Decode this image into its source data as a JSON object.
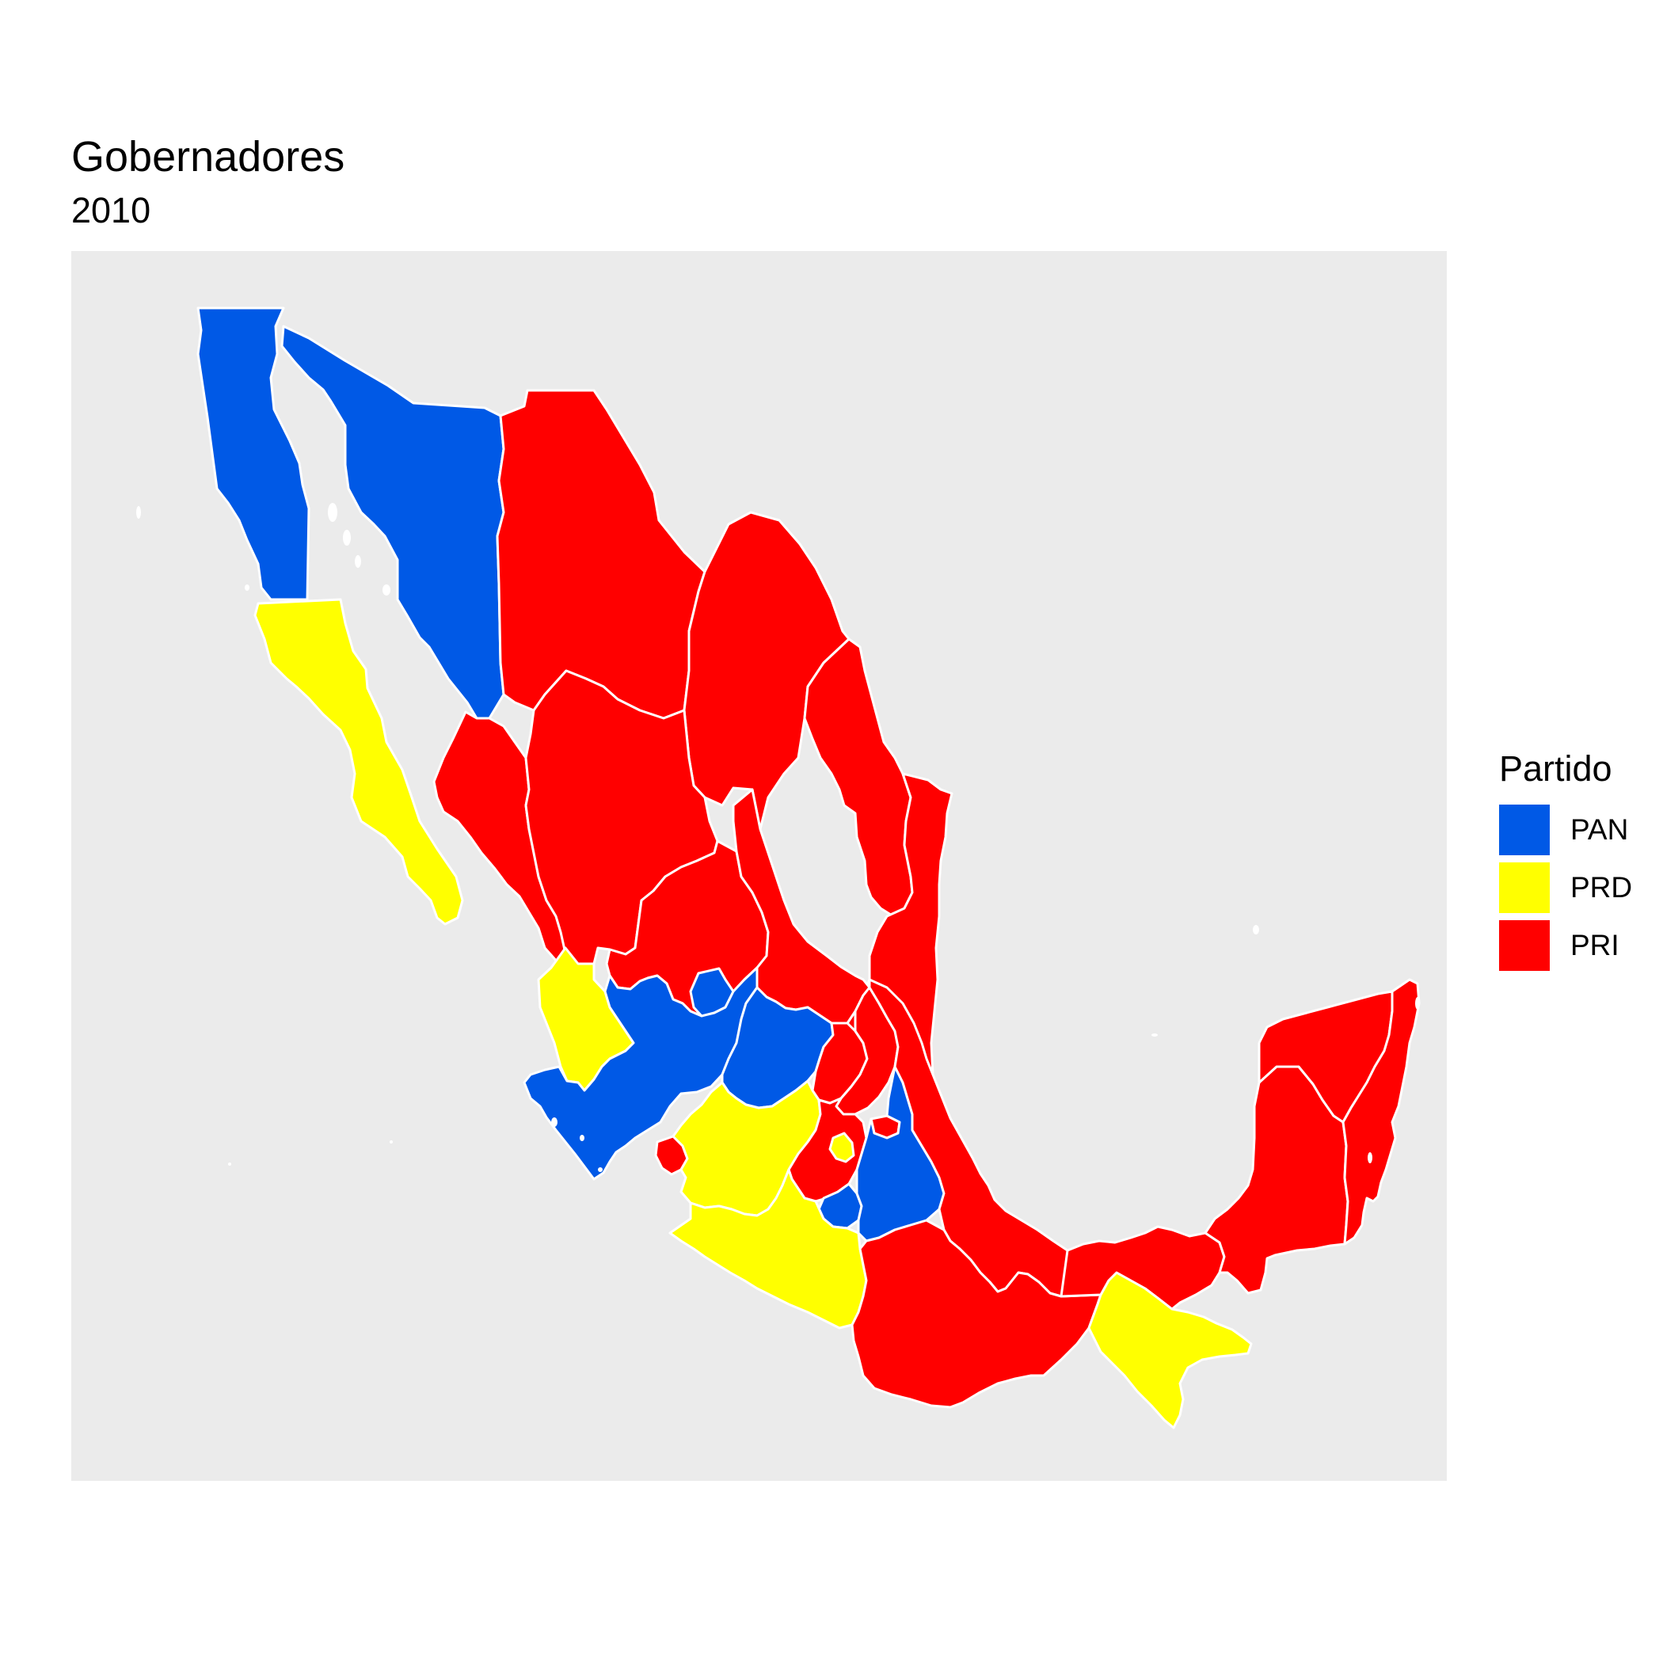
{
  "map": {
    "title": "Gobernadores",
    "subtitle": "2010",
    "legend": {
      "title": "Partido",
      "items": [
        {
          "label": "PAN",
          "color": "#0059e6"
        },
        {
          "label": "PRD",
          "color": "#ffff00"
        },
        {
          "label": "PRI",
          "color": "#ff0000"
        }
      ]
    },
    "colors": {
      "PAN": "#0059e6",
      "PRD": "#ffff00",
      "PRI": "#ff0000",
      "border": "#ffffff",
      "panel_background": "#ebebeb"
    },
    "states": [
      {
        "name": "Baja California",
        "party": "PAN"
      },
      {
        "name": "Baja California Sur",
        "party": "PRD"
      },
      {
        "name": "Sonora",
        "party": "PAN"
      },
      {
        "name": "Chihuahua",
        "party": "PRI"
      },
      {
        "name": "Coahuila",
        "party": "PRI"
      },
      {
        "name": "Nuevo León",
        "party": "PRI"
      },
      {
        "name": "Tamaulipas",
        "party": "PRI"
      },
      {
        "name": "Sinaloa",
        "party": "PRI"
      },
      {
        "name": "Durango",
        "party": "PRI"
      },
      {
        "name": "Zacatecas",
        "party": "PRI"
      },
      {
        "name": "San Luis Potosí",
        "party": "PRI"
      },
      {
        "name": "Nayarit",
        "party": "PRD"
      },
      {
        "name": "Aguascalientes",
        "party": "PAN"
      },
      {
        "name": "Jalisco",
        "party": "PAN"
      },
      {
        "name": "Guanajuato",
        "party": "PAN"
      },
      {
        "name": "Querétaro",
        "party": "PRI"
      },
      {
        "name": "Hidalgo",
        "party": "PRI"
      },
      {
        "name": "Colima",
        "party": "PRI"
      },
      {
        "name": "Michoacán",
        "party": "PRD"
      },
      {
        "name": "Estado de México",
        "party": "PRI"
      },
      {
        "name": "Ciudad de México",
        "party": "PRD"
      },
      {
        "name": "Morelos",
        "party": "PAN"
      },
      {
        "name": "Tlaxcala",
        "party": "PRI"
      },
      {
        "name": "Puebla",
        "party": "PAN"
      },
      {
        "name": "Veracruz",
        "party": "PRI"
      },
      {
        "name": "Guerrero",
        "party": "PRD"
      },
      {
        "name": "Oaxaca",
        "party": "PRI"
      },
      {
        "name": "Chiapas",
        "party": "PRD"
      },
      {
        "name": "Tabasco",
        "party": "PRI"
      },
      {
        "name": "Campeche",
        "party": "PRI"
      },
      {
        "name": "Yucatán",
        "party": "PRI"
      },
      {
        "name": "Quintana Roo",
        "party": "PRI"
      }
    ]
  }
}
